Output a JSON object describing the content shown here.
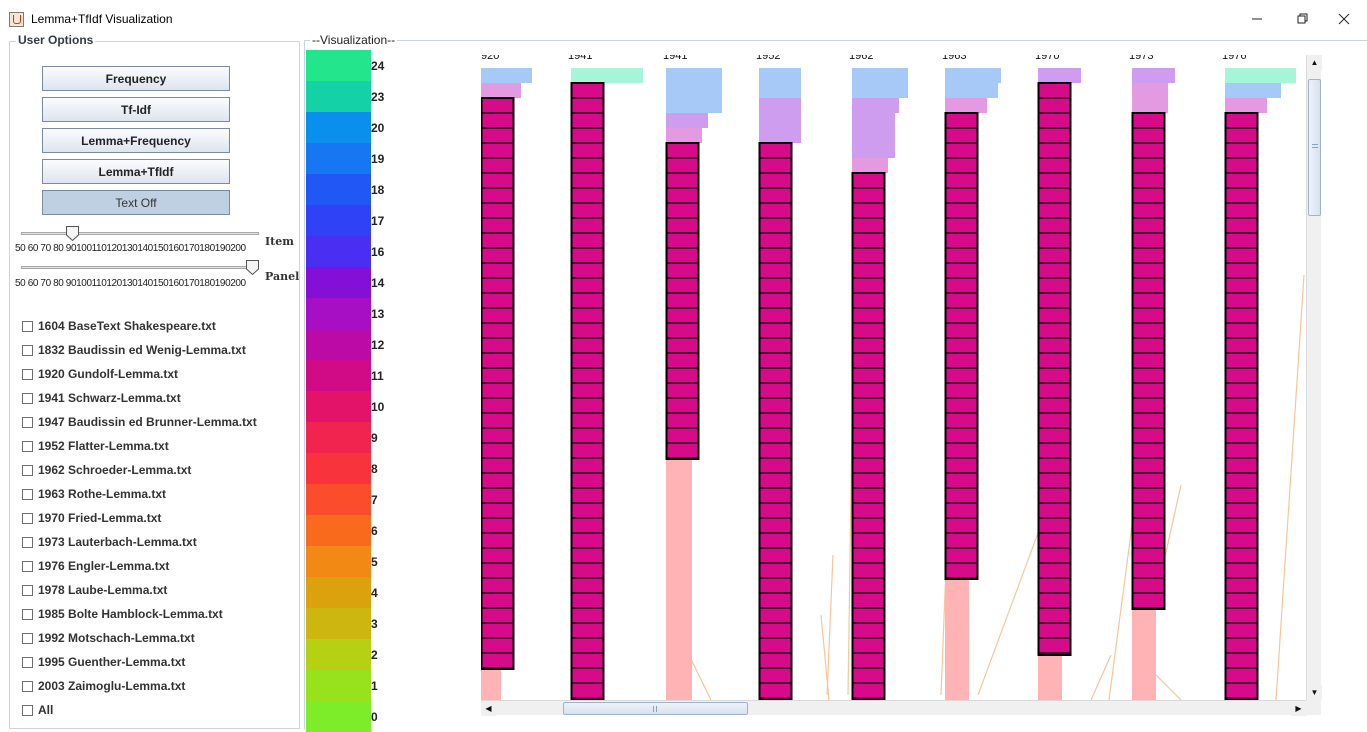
{
  "window": {
    "title": "Lemma+TfIdf Visualization"
  },
  "options": {
    "group_title": "User Options",
    "buttons": [
      "Frequency",
      "Tf-Idf",
      "Lemma+Frequency",
      "Lemma+TfIdf",
      "Text Off"
    ],
    "sliders": [
      {
        "label": "Item",
        "ticks": "50 60 70 80 90100110120130140150160170180190200",
        "value": 80
      },
      {
        "label": "Panel",
        "ticks": "50 60 70 80 90100110120130140150160170180190200",
        "value": 200
      }
    ],
    "files": [
      "1604 BaseText Shakespeare.txt",
      "1832 Baudissin ed Wenig-Lemma.txt",
      "1920 Gundolf-Lemma.txt",
      "1941 Schwarz-Lemma.txt",
      "1947 Baudissin ed Brunner-Lemma.txt",
      "1952 Flatter-Lemma.txt",
      "1962 Schroeder-Lemma.txt",
      "1963 Rothe-Lemma.txt",
      "1970 Fried-Lemma.txt",
      "1973 Lauterbach-Lemma.txt",
      "1976 Engler-Lemma.txt",
      "1978 Laube-Lemma.txt",
      "1985 Bolte Hamblock-Lemma.txt",
      "1992 Motschach-Lemma.txt",
      "1995 Guenther-Lemma.txt",
      "2003 Zaimoglu-Lemma.txt",
      "All"
    ]
  },
  "viz": {
    "group_title": "--Visualization--",
    "legend": [
      {
        "label": "24",
        "color": "#22e58c"
      },
      {
        "label": "23",
        "color": "#14d2a6"
      },
      {
        "label": "20",
        "color": "#0a90ec"
      },
      {
        "label": "19",
        "color": "#1776f2"
      },
      {
        "label": "18",
        "color": "#2158f5"
      },
      {
        "label": "17",
        "color": "#2f42f6"
      },
      {
        "label": "16",
        "color": "#4a2ef2"
      },
      {
        "label": "14",
        "color": "#8410d8"
      },
      {
        "label": "13",
        "color": "#a60fc3"
      },
      {
        "label": "12",
        "color": "#bc0aa7"
      },
      {
        "label": "11",
        "color": "#d10b86"
      },
      {
        "label": "10",
        "color": "#e3136a"
      },
      {
        "label": "9",
        "color": "#f0244e"
      },
      {
        "label": "8",
        "color": "#f8333c"
      },
      {
        "label": "7",
        "color": "#fb4d2b"
      },
      {
        "label": "6",
        "color": "#fa6a1d"
      },
      {
        "label": "5",
        "color": "#f28914"
      },
      {
        "label": "4",
        "color": "#dca20d"
      },
      {
        "label": "3",
        "color": "#cdb60f"
      },
      {
        "label": "2",
        "color": "#b6d014"
      },
      {
        "label": "1",
        "color": "#98e21d"
      },
      {
        "label": "0",
        "color": "#7ced28"
      }
    ],
    "columns": [
      "920",
      "1941",
      "1941",
      "1952",
      "1962",
      "1963",
      "1970",
      "1973",
      "1976"
    ],
    "colors": {
      "cell": "#d70a8a",
      "pale_blue": "#a6c9f7",
      "lavender": "#cf9df0",
      "pink": "#e49ae0",
      "mint": "#a7f5d9",
      "salmon": "#ffb3b5",
      "line": "#f7c59a"
    }
  }
}
